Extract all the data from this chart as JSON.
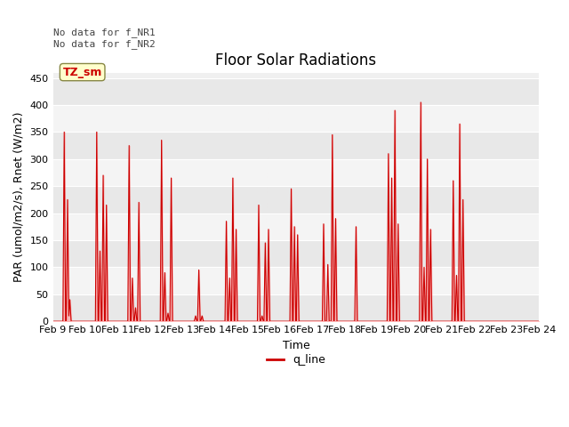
{
  "title": "Floor Solar Radiations",
  "xlabel": "Time",
  "ylabel": "PAR (umol/m2/s), Rnet (W/m2)",
  "ylim": [
    0,
    460
  ],
  "yticks": [
    0,
    50,
    100,
    150,
    200,
    250,
    300,
    350,
    400,
    450
  ],
  "annotation_text": "No data for f_NR1\nNo data for f_NR2",
  "legend_label": "q_line",
  "legend_color": "#cc0000",
  "cursor_label": "TZ_sm",
  "cursor_bg": "#ffffcc",
  "cursor_border": "#888844",
  "line_color": "#cc0000",
  "fill_color": "#ff9999",
  "bg_light": "#f0f0f0",
  "bg_dark": "#e0e0e0",
  "title_fontsize": 12,
  "axis_fontsize": 9,
  "tick_fontsize": 8,
  "xtick_labels": [
    "Feb 9",
    "Feb 10",
    "Feb 11",
    "Feb 12",
    "Feb 13",
    "Feb 14",
    "Feb 15",
    "Feb 16",
    "Feb 17",
    "Feb 18",
    "Feb 19",
    "Feb 20",
    "Feb 21",
    "Feb 22",
    "Feb 23",
    "Feb 24"
  ],
  "peaks": [
    {
      "day": 0.35,
      "val": 350
    },
    {
      "day": 0.45,
      "val": 225
    },
    {
      "day": 0.52,
      "val": 40
    },
    {
      "day": 1.35,
      "val": 350
    },
    {
      "day": 1.45,
      "val": 130
    },
    {
      "day": 1.55,
      "val": 270
    },
    {
      "day": 1.65,
      "val": 215
    },
    {
      "day": 2.35,
      "val": 325
    },
    {
      "day": 2.45,
      "val": 80
    },
    {
      "day": 2.55,
      "val": 25
    },
    {
      "day": 2.65,
      "val": 220
    },
    {
      "day": 3.35,
      "val": 335
    },
    {
      "day": 3.45,
      "val": 90
    },
    {
      "day": 3.55,
      "val": 15
    },
    {
      "day": 3.65,
      "val": 265
    },
    {
      "day": 4.4,
      "val": 10
    },
    {
      "day": 4.5,
      "val": 95
    },
    {
      "day": 4.6,
      "val": 10
    },
    {
      "day": 5.35,
      "val": 185
    },
    {
      "day": 5.45,
      "val": 80
    },
    {
      "day": 5.55,
      "val": 265
    },
    {
      "day": 5.65,
      "val": 170
    },
    {
      "day": 6.35,
      "val": 215
    },
    {
      "day": 6.45,
      "val": 10
    },
    {
      "day": 6.55,
      "val": 145
    },
    {
      "day": 6.65,
      "val": 170
    },
    {
      "day": 7.35,
      "val": 245
    },
    {
      "day": 7.45,
      "val": 175
    },
    {
      "day": 7.55,
      "val": 160
    },
    {
      "day": 8.35,
      "val": 180
    },
    {
      "day": 8.48,
      "val": 105
    },
    {
      "day": 8.62,
      "val": 345
    },
    {
      "day": 8.72,
      "val": 190
    },
    {
      "day": 9.35,
      "val": 175
    },
    {
      "day": 10.35,
      "val": 310
    },
    {
      "day": 10.45,
      "val": 265
    },
    {
      "day": 10.55,
      "val": 390
    },
    {
      "day": 10.65,
      "val": 180
    },
    {
      "day": 11.35,
      "val": 405
    },
    {
      "day": 11.45,
      "val": 100
    },
    {
      "day": 11.55,
      "val": 300
    },
    {
      "day": 11.65,
      "val": 170
    },
    {
      "day": 12.35,
      "val": 260
    },
    {
      "day": 12.45,
      "val": 85
    },
    {
      "day": 12.55,
      "val": 365
    },
    {
      "day": 12.65,
      "val": 225
    }
  ]
}
